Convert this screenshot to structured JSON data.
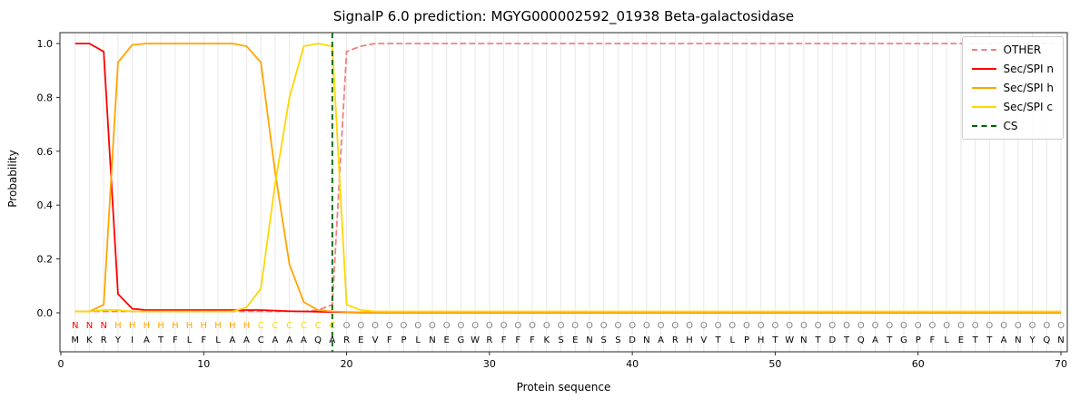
{
  "chart_data": {
    "type": "line",
    "title": "SignalP 6.0 prediction: MGYG000002592_01938 Beta-galactosidase",
    "xlabel": "Protein sequence",
    "ylabel": "Probability",
    "xlim": [
      0,
      70
    ],
    "ylim": [
      0.0,
      1.0
    ],
    "xticks": [
      0,
      10,
      20,
      30,
      40,
      50,
      60,
      70
    ],
    "yticks": [
      0.0,
      0.2,
      0.4,
      0.6,
      0.8,
      1.0
    ],
    "x_positions": [
      1,
      70
    ],
    "grid": "vertical-per-residue",
    "legend_position": "upper right",
    "series": [
      {
        "name": "OTHER",
        "color": "#f08080",
        "dash": true,
        "values": [
          0.005,
          0.005,
          0.005,
          0.005,
          0.005,
          0.005,
          0.005,
          0.005,
          0.005,
          0.005,
          0.005,
          0.005,
          0.005,
          0.005,
          0.005,
          0.005,
          0.005,
          0.01,
          0.03,
          0.97,
          0.99,
          1.0,
          1.0,
          1.0,
          1.0,
          1.0,
          1.0,
          1.0,
          1.0,
          1.0,
          1.0,
          1.0,
          1.0,
          1.0,
          1.0,
          1.0,
          1.0,
          1.0,
          1.0,
          1.0,
          1.0,
          1.0,
          1.0,
          1.0,
          1.0,
          1.0,
          1.0,
          1.0,
          1.0,
          1.0,
          1.0,
          1.0,
          1.0,
          1.0,
          1.0,
          1.0,
          1.0,
          1.0,
          1.0,
          1.0,
          1.0,
          1.0,
          1.0,
          1.0,
          1.0,
          1.0,
          1.0,
          1.0,
          1.0,
          1.0
        ]
      },
      {
        "name": "Sec/SPI n",
        "color": "#ff0000",
        "dash": false,
        "values": [
          1.0,
          1.0,
          0.97,
          0.07,
          0.015,
          0.01,
          0.01,
          0.01,
          0.01,
          0.01,
          0.01,
          0.01,
          0.01,
          0.01,
          0.008,
          0.006,
          0.005,
          0.004,
          0.003,
          0.002,
          0.001,
          0.001,
          0.001,
          0.001,
          0.001,
          0.001,
          0.001,
          0.001,
          0.001,
          0.001,
          0.001,
          0.001,
          0.001,
          0.001,
          0.001,
          0.001,
          0.001,
          0.001,
          0.001,
          0.001,
          0.001,
          0.001,
          0.001,
          0.001,
          0.001,
          0.001,
          0.001,
          0.001,
          0.001,
          0.001,
          0.001,
          0.001,
          0.001,
          0.001,
          0.001,
          0.001,
          0.001,
          0.001,
          0.001,
          0.001,
          0.001,
          0.001,
          0.001,
          0.001,
          0.001,
          0.001,
          0.001,
          0.001,
          0.001,
          0.001
        ]
      },
      {
        "name": "Sec/SPI h",
        "color": "#ffa500",
        "dash": false,
        "values": [
          0.005,
          0.005,
          0.03,
          0.93,
          0.995,
          1.0,
          1.0,
          1.0,
          1.0,
          1.0,
          1.0,
          1.0,
          0.99,
          0.93,
          0.52,
          0.18,
          0.04,
          0.01,
          0.005,
          0.003,
          0.002,
          0.002,
          0.002,
          0.002,
          0.002,
          0.002,
          0.002,
          0.002,
          0.002,
          0.002,
          0.002,
          0.002,
          0.002,
          0.002,
          0.002,
          0.002,
          0.002,
          0.002,
          0.002,
          0.002,
          0.002,
          0.002,
          0.002,
          0.002,
          0.002,
          0.002,
          0.002,
          0.002,
          0.002,
          0.002,
          0.002,
          0.002,
          0.002,
          0.002,
          0.002,
          0.002,
          0.002,
          0.002,
          0.002,
          0.002,
          0.002,
          0.002,
          0.002,
          0.002,
          0.002,
          0.002,
          0.002,
          0.002,
          0.002,
          0.002
        ]
      },
      {
        "name": "Sec/SPI c",
        "color": "#ffd700",
        "dash": false,
        "values": [
          0.005,
          0.005,
          0.01,
          0.01,
          0.005,
          0.005,
          0.005,
          0.005,
          0.005,
          0.005,
          0.005,
          0.005,
          0.02,
          0.09,
          0.48,
          0.8,
          0.99,
          1.0,
          0.99,
          0.03,
          0.01,
          0.005,
          0.005,
          0.005,
          0.005,
          0.005,
          0.005,
          0.005,
          0.005,
          0.005,
          0.005,
          0.005,
          0.005,
          0.005,
          0.005,
          0.005,
          0.005,
          0.005,
          0.005,
          0.005,
          0.005,
          0.005,
          0.005,
          0.005,
          0.005,
          0.005,
          0.005,
          0.005,
          0.005,
          0.005,
          0.005,
          0.005,
          0.005,
          0.005,
          0.005,
          0.005,
          0.005,
          0.005,
          0.005,
          0.005,
          0.005,
          0.005,
          0.005,
          0.005,
          0.005,
          0.005,
          0.005,
          0.005,
          0.005,
          0.005
        ]
      }
    ],
    "cs": {
      "label": "CS",
      "color": "#006400",
      "dash": true,
      "position": 19
    },
    "sequence": "MKRYIATFLFLAACAAAQAREVFPLNEGWRFFFKSENSSDNARHVTLPHTWNTDTQATGPFLETTANYQN",
    "regions": "NNNHHHHHHHHHHCCCCCCOOOOOOOOOOOOOOOOOOOOOOOOOOOOOOOOOOOOOOOOOOOOOOOOOO",
    "region_colors": {
      "N": "#ff0000",
      "H": "#ffa500",
      "C": "#ffd700",
      "O": "#808080"
    },
    "legend_labels": [
      "OTHER",
      "Sec/SPI n",
      "Sec/SPI h",
      "Sec/SPI c",
      "CS"
    ]
  }
}
